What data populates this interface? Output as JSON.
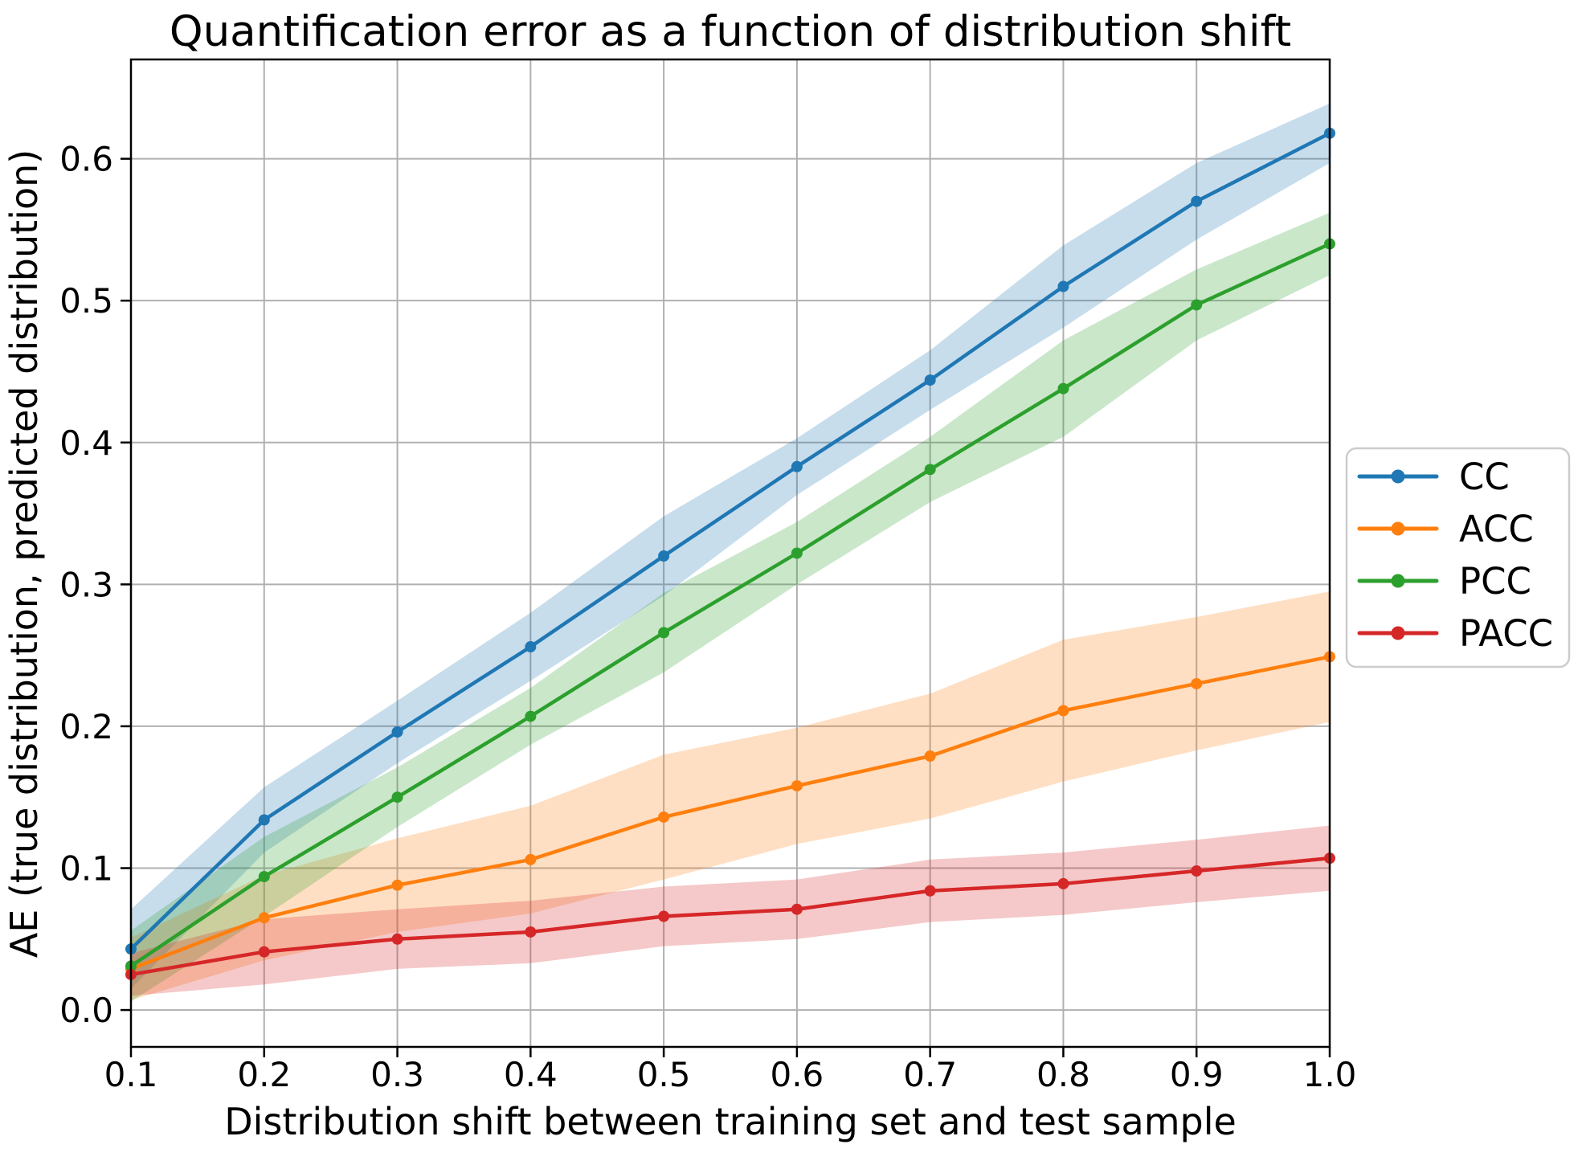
{
  "figure": {
    "title": "Quantification error as a function of distribution shift",
    "xlabel": "Distribution shift between training set and test sample",
    "ylabel": "AE (true distribution, predicted distribution)"
  },
  "chart_data": {
    "type": "line",
    "title": "Quantification error as a function of distribution shift",
    "xlabel": "Distribution shift between training set and test sample",
    "ylabel": "AE (true distribution, predicted distribution)",
    "x": [
      0.1,
      0.2,
      0.3,
      0.4,
      0.5,
      0.6,
      0.7,
      0.8,
      0.9,
      1.0
    ],
    "x_tick_labels": [
      "0.1",
      "0.2",
      "0.3",
      "0.4",
      "0.5",
      "0.6",
      "0.7",
      "0.8",
      "0.9",
      "1.0"
    ],
    "y_tick_values": [
      0.0,
      0.1,
      0.2,
      0.3,
      0.4,
      0.5,
      0.6
    ],
    "y_tick_labels": [
      "0.0",
      "0.1",
      "0.2",
      "0.3",
      "0.4",
      "0.5",
      "0.6"
    ],
    "xlim": [
      0.1,
      1.0
    ],
    "ylim": [
      -0.026,
      0.67
    ],
    "grid": true,
    "grid_color": "#b0b0b0",
    "background": "#ffffff",
    "band_opacity": 0.25,
    "legend_position": "right of axes, vertically centered",
    "series": [
      {
        "name": "CC",
        "color": "#1f77b4",
        "values": [
          0.043,
          0.134,
          0.196,
          0.256,
          0.32,
          0.383,
          0.444,
          0.51,
          0.57,
          0.618
        ],
        "band_lower": [
          0.015,
          0.111,
          0.174,
          0.232,
          0.292,
          0.363,
          0.423,
          0.481,
          0.543,
          0.597
        ],
        "band_upper": [
          0.071,
          0.157,
          0.218,
          0.28,
          0.348,
          0.403,
          0.465,
          0.539,
          0.597,
          0.639
        ]
      },
      {
        "name": "ACC",
        "color": "#ff7f0e",
        "values": [
          0.029,
          0.065,
          0.088,
          0.106,
          0.136,
          0.158,
          0.179,
          0.211,
          0.23,
          0.249
        ],
        "band_lower": [
          0.007,
          0.035,
          0.055,
          0.068,
          0.092,
          0.117,
          0.135,
          0.161,
          0.183,
          0.203
        ],
        "band_upper": [
          0.051,
          0.095,
          0.121,
          0.144,
          0.18,
          0.199,
          0.223,
          0.261,
          0.277,
          0.295
        ]
      },
      {
        "name": "PCC",
        "color": "#2ca02c",
        "values": [
          0.031,
          0.094,
          0.15,
          0.207,
          0.266,
          0.322,
          0.381,
          0.438,
          0.497,
          0.54
        ],
        "band_lower": [
          0.006,
          0.066,
          0.129,
          0.187,
          0.238,
          0.3,
          0.358,
          0.404,
          0.472,
          0.518
        ],
        "band_upper": [
          0.056,
          0.122,
          0.171,
          0.227,
          0.294,
          0.344,
          0.404,
          0.472,
          0.522,
          0.562
        ]
      },
      {
        "name": "PACC",
        "color": "#d62728",
        "values": [
          0.025,
          0.041,
          0.05,
          0.055,
          0.066,
          0.071,
          0.084,
          0.089,
          0.098,
          0.107
        ],
        "band_lower": [
          0.01,
          0.018,
          0.029,
          0.033,
          0.045,
          0.05,
          0.062,
          0.067,
          0.076,
          0.084
        ],
        "band_upper": [
          0.04,
          0.064,
          0.071,
          0.077,
          0.087,
          0.092,
          0.106,
          0.111,
          0.12,
          0.13
        ]
      }
    ]
  }
}
